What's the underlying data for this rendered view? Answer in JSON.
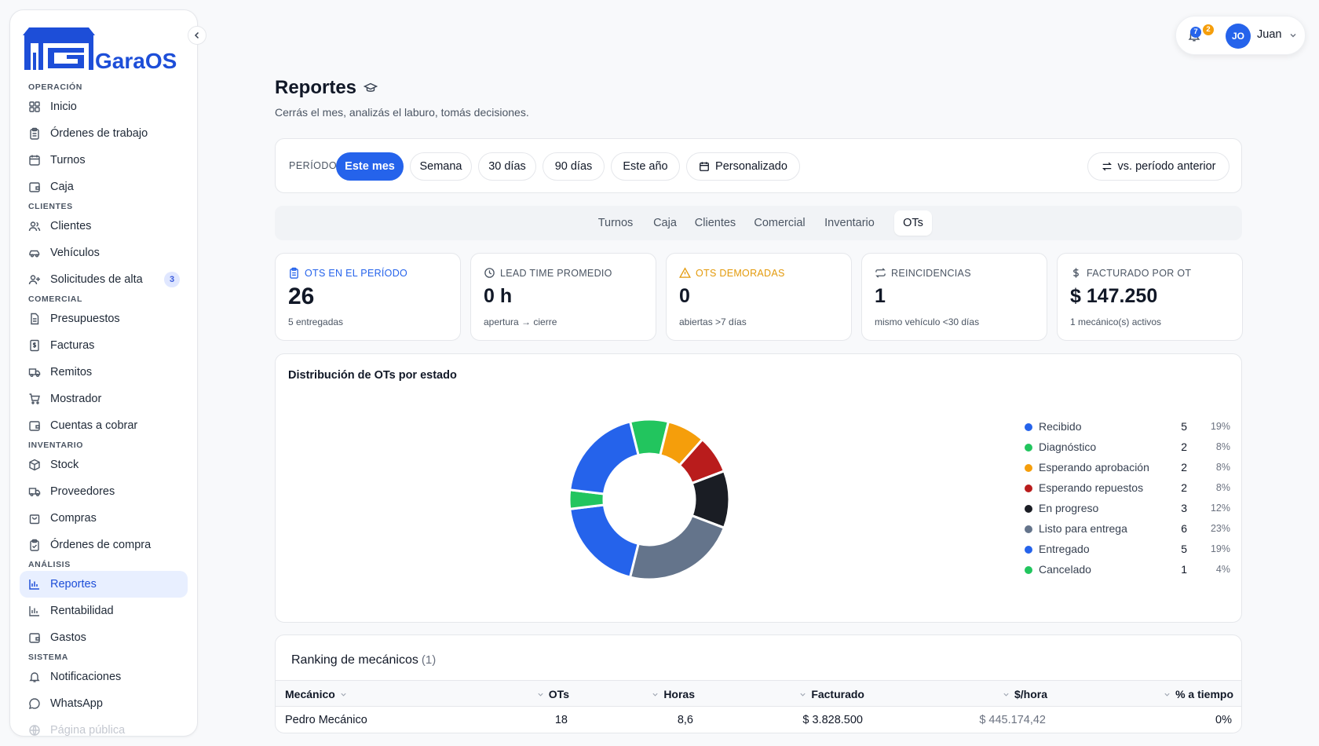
{
  "app": {
    "brand": "GaraOS"
  },
  "sidebar": {
    "sections": {
      "operacion": "Operación",
      "clientes": "Clientes",
      "comercial": "Comercial",
      "inventario": "Inventario",
      "analisis": "Análisis",
      "sistema": "Sistema"
    },
    "items": {
      "inicio": "Inicio",
      "ordenes": "Órdenes de trabajo",
      "turnos": "Turnos",
      "caja": "Caja",
      "clientes": "Clientes",
      "vehiculos": "Vehículos",
      "solicitudes": "Solicitudes de alta",
      "solicitudes_badge": "3",
      "presupuestos": "Presupuestos",
      "facturas": "Facturas",
      "remitos": "Remitos",
      "mostrador": "Mostrador",
      "cuentas": "Cuentas a cobrar",
      "stock": "Stock",
      "proveedores": "Proveedores",
      "compras": "Compras",
      "ordenes_compra": "Órdenes de compra",
      "reportes": "Reportes",
      "rentabilidad": "Rentabilidad",
      "gastos": "Gastos",
      "notificaciones": "Notificaciones",
      "whatsapp": "WhatsApp",
      "pagina_publica": "Página pública"
    }
  },
  "topbar": {
    "badge_blue": "7",
    "badge_orange": "2",
    "avatar_initials": "JO",
    "user_name": "Juan"
  },
  "header": {
    "title": "Reportes",
    "subtitle": "Cerrás el mes, analizás el laburo, tomás decisiones."
  },
  "period": {
    "label": "Período",
    "options": [
      "Este mes",
      "Semana",
      "30 días",
      "90 días",
      "Este año",
      "Personalizado"
    ],
    "selected": "Este mes",
    "compare": "vs. período anterior"
  },
  "tabs": [
    "Turnos",
    "Caja",
    "Clientes",
    "Comercial",
    "Inventario",
    "OTs"
  ],
  "active_tab": "OTs",
  "kpis": [
    {
      "label": "OTs en el período",
      "value": "26",
      "sub": "5 entregadas"
    },
    {
      "label": "Lead time promedio",
      "value": "0 h",
      "sub": "apertura → cierre"
    },
    {
      "label": "OTs demoradas",
      "value": "0",
      "sub": "abiertas >7 días"
    },
    {
      "label": "Reincidencias",
      "value": "1",
      "sub": "mismo vehículo <30 días"
    },
    {
      "label": "Facturado por OT",
      "value": "$ 147.250",
      "sub": "1 mecánico(s) activos"
    }
  ],
  "distribution": {
    "title": "Distribución de OTs por estado"
  },
  "chart_data": {
    "type": "pie",
    "title": "Distribución de OTs por estado",
    "categories": [
      "Recibido",
      "Diagnóstico",
      "Esperando aprobación",
      "Esperando repuestos",
      "En progreso",
      "Listo para entrega",
      "Entregado",
      "Cancelado"
    ],
    "values": [
      5,
      2,
      2,
      2,
      3,
      6,
      5,
      1
    ],
    "percents": [
      "19%",
      "8%",
      "8%",
      "8%",
      "12%",
      "23%",
      "19%",
      "4%"
    ],
    "colors": [
      "#2563eb",
      "#22c55e",
      "#f59e0b",
      "#b91c1c",
      "#1a1d24",
      "#64748b",
      "#2563eb",
      "#22c55e"
    ],
    "start_category": "Diagnóstico",
    "donut": true,
    "legend": "right"
  },
  "ranking": {
    "title": "Ranking de mecánicos",
    "count": "(1)",
    "columns": [
      "Mecánico",
      "OTs",
      "Horas",
      "Facturado",
      "$/hora",
      "% a tiempo"
    ],
    "rows": [
      {
        "mecanico": "Pedro Mecánico",
        "ots": "18",
        "horas": "8,6",
        "facturado": "$ 3.828.500",
        "por_hora": "$ 445.174,42",
        "a_tiempo": "0%"
      }
    ]
  }
}
